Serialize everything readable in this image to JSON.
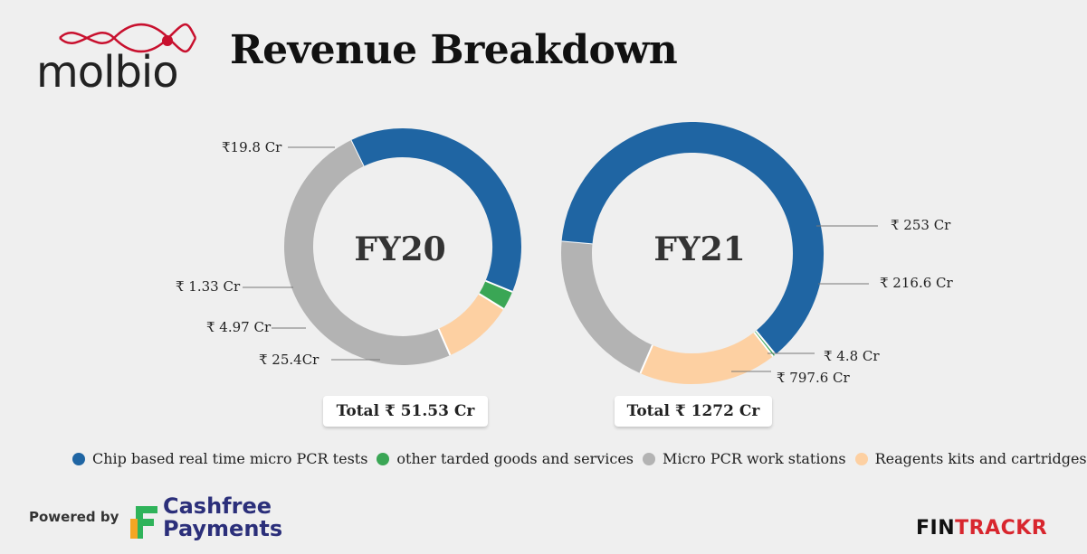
{
  "brand": {
    "logo_text": "molbio"
  },
  "title": "Revenue Breakdown",
  "colors": {
    "chip_pcr_tests": "#1f65a3",
    "other_traded_goods": "#3aa655",
    "micro_pcr_work_stations": "#b3b3b3",
    "reagents_kits": "#fdd0a2"
  },
  "chart_data": [
    {
      "type": "pie",
      "variant": "donut",
      "center_label": "FY20",
      "total_label": "Total ₹ 51.53 Cr",
      "slices": [
        {
          "series": "Chip based real time micro PCR tests",
          "value": 19.8,
          "label": "₹19.8 Cr",
          "color": "#1f65a3"
        },
        {
          "series": "other tarded goods and services",
          "value": 1.33,
          "label": "₹ 1.33 Cr",
          "color": "#3aa655"
        },
        {
          "series": "Reagents kits and cartridges",
          "value": 4.97,
          "label": "₹ 4.97 Cr",
          "color": "#fdd0a2"
        },
        {
          "series": "Micro PCR work stations",
          "value": 25.4,
          "label": "₹ 25.4Cr",
          "color": "#b3b3b3"
        }
      ]
    },
    {
      "type": "pie",
      "variant": "donut",
      "center_label": "FY21",
      "total_label": "Total ₹ 1272 Cr",
      "slices": [
        {
          "series": "Chip based real time micro PCR tests",
          "value": 797.6,
          "label": "₹ 797.6 Cr",
          "color": "#1f65a3"
        },
        {
          "series": "other tarded goods and services",
          "value": 4.8,
          "label": "₹ 4.8 Cr",
          "color": "#3aa655"
        },
        {
          "series": "Reagents kits and cartridges",
          "value": 216.6,
          "label": "₹ 216.6 Cr",
          "color": "#fdd0a2"
        },
        {
          "series": "Micro PCR work stations",
          "value": 253,
          "label": "₹ 253 Cr",
          "color": "#b3b3b3"
        }
      ]
    }
  ],
  "legend": [
    {
      "label": "Chip based real time micro PCR tests",
      "color": "#1f65a3"
    },
    {
      "label": "other tarded goods and services",
      "color": "#3aa655"
    },
    {
      "label": "Micro PCR work stations",
      "color": "#b3b3b3"
    },
    {
      "label": "Reagents kits and cartridges",
      "color": "#fdd0a2"
    }
  ],
  "footer": {
    "powered_by": "Powered by",
    "sponsor_line1": "Cashfree",
    "sponsor_line2": "Payments",
    "brand_left": "FIN",
    "brand_right": "TRACKR"
  }
}
